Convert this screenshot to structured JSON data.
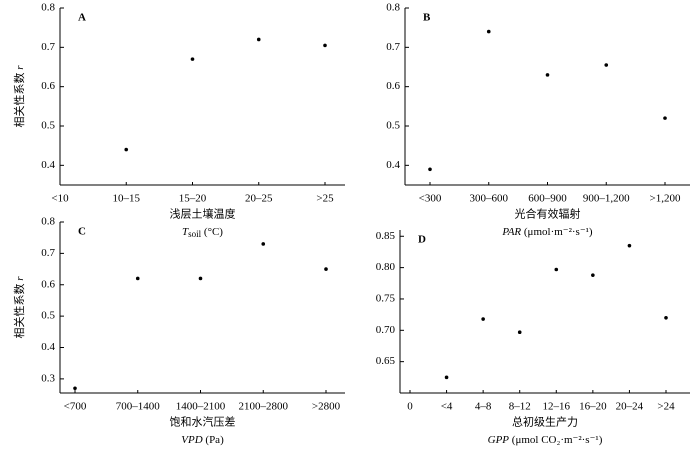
{
  "chart_data": [
    {
      "type": "scatter",
      "label": "A",
      "y_label": "相关性系数",
      "y_symbol": "r",
      "x_label": "浅层土壤温度",
      "x_symbol": "T",
      "x_sub": "soil",
      "x_unit": "(°C)",
      "categories": [
        "<10",
        "10–15",
        "15–20",
        "20–25",
        ">25"
      ],
      "values": [
        null,
        0.44,
        0.67,
        0.72,
        0.705
      ],
      "color": "#000000",
      "ylim": [
        0.35,
        0.8
      ],
      "yticks": [
        0.4,
        0.5,
        0.6,
        0.7,
        0.8
      ]
    },
    {
      "type": "scatter",
      "label": "B",
      "x_label": "光合有效辐射",
      "x_symbol": "PAR",
      "x_unit": "(μmol·m⁻²·s⁻¹)",
      "categories": [
        "<300",
        "300–600",
        "600–900",
        "900–1,200",
        ">1,200"
      ],
      "values": [
        0.39,
        0.74,
        0.63,
        0.655,
        0.52
      ],
      "color": "#000000",
      "ylim": [
        0.35,
        0.8
      ],
      "yticks": [
        0.4,
        0.5,
        0.6,
        0.7,
        0.8
      ]
    },
    {
      "type": "scatter",
      "label": "C",
      "y_label": "相关性系数",
      "y_symbol": "r",
      "x_label": "饱和水汽压差",
      "x_symbol": "VPD",
      "x_unit": "(Pa)",
      "categories": [
        "<700",
        "700–1400",
        "1400–2100",
        "2100–2800",
        ">2800"
      ],
      "values": [
        0.27,
        0.62,
        0.62,
        0.73,
        0.65
      ],
      "color": "#000000",
      "ylim": [
        0.255,
        0.8
      ],
      "yticks": [
        0.3,
        0.4,
        0.5,
        0.6,
        0.7,
        0.8
      ]
    },
    {
      "type": "scatter",
      "label": "D",
      "x_label": "总初级生产力",
      "x_symbol": "GPP",
      "x_unit": "(μmol CO₂·m⁻²·s⁻¹)",
      "categories": [
        "0",
        "<4",
        "4–8",
        "8–12",
        "12–16",
        "16–20",
        "20–24",
        ">24"
      ],
      "values": [
        null,
        0.625,
        0.718,
        0.697,
        0.797,
        0.788,
        0.835,
        0.72
      ],
      "color": "#000000",
      "ylim": [
        0.6,
        0.86
      ],
      "yticks": [
        0.65,
        {
          "value": 0.7,
          "label": "0.70"
        },
        0.75,
        {
          "value": 0.8,
          "label": "0.80"
        },
        0.85
      ]
    }
  ]
}
